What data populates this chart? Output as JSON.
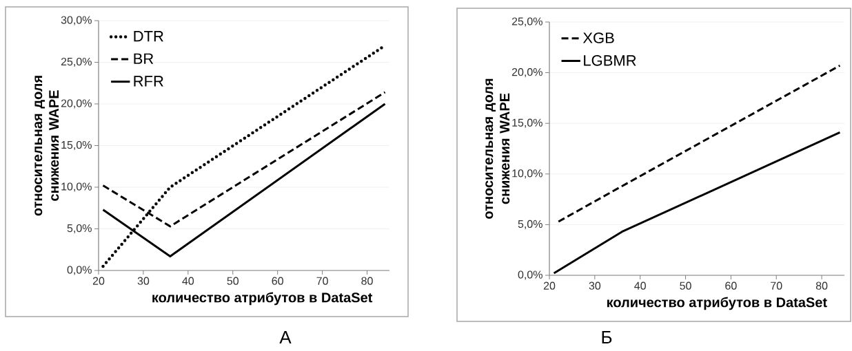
{
  "chart_data": [
    {
      "type": "line",
      "xlabel": "количество атрибутов в DataSet",
      "ylabel": "относительная доля снижения WAPE",
      "x": [
        21,
        36,
        84
      ],
      "xlim": [
        20,
        85
      ],
      "xticks": [
        20,
        30,
        40,
        50,
        60,
        70,
        80
      ],
      "ylim": [
        0,
        30
      ],
      "yticks": [
        {
          "value": 0,
          "label": "0,0%"
        },
        {
          "value": 5,
          "label": "5,0%"
        },
        {
          "value": 10,
          "label": "10,0%"
        },
        {
          "value": 15,
          "label": "15,0%"
        },
        {
          "value": 20,
          "label": "20,0%"
        },
        {
          "value": 25,
          "label": "25,0%"
        },
        {
          "value": 30,
          "label": "30,0%"
        }
      ],
      "grid": "y",
      "legend": "top left",
      "marker": "none",
      "series": [
        {
          "name": "DTR",
          "color": "#000000",
          "line_style": "dotted",
          "values": [
            0.5,
            10.0,
            27.0
          ]
        },
        {
          "name": "BR",
          "color": "#000000",
          "line_style": "dashed",
          "values": [
            10.2,
            5.3,
            21.4
          ]
        },
        {
          "name": "RFR",
          "color": "#000000",
          "line_style": "solid",
          "values": [
            7.3,
            1.7,
            20.0
          ]
        }
      ],
      "annotations": [
        "А"
      ]
    },
    {
      "type": "line",
      "xlabel": "количество атрибутов в DataSet",
      "ylabel": "относительная доля снижения WAPE",
      "xlim": [
        20,
        85
      ],
      "xticks": [
        20,
        30,
        40,
        50,
        60,
        70,
        80
      ],
      "ylim": [
        0,
        25
      ],
      "yticks": [
        {
          "value": 0,
          "label": "0,0%"
        },
        {
          "value": 5,
          "label": "5,0%"
        },
        {
          "value": 10,
          "label": "10,0%"
        },
        {
          "value": 15,
          "label": "15,0%"
        },
        {
          "value": 20,
          "label": "20,0%"
        },
        {
          "value": 25,
          "label": "25,0%"
        }
      ],
      "grid": "y",
      "legend": "top left",
      "marker": "none",
      "series": [
        {
          "name": "XGB",
          "color": "#000000",
          "line_style": "dashed",
          "x": [
            22,
            36,
            84
          ],
          "values": [
            5.3,
            8.8,
            20.7
          ]
        },
        {
          "name": "LGBMR",
          "color": "#000000",
          "line_style": "solid",
          "x": [
            21,
            36,
            84
          ],
          "values": [
            0.2,
            4.3,
            14.1
          ]
        }
      ],
      "annotations": [
        "Б"
      ]
    }
  ]
}
